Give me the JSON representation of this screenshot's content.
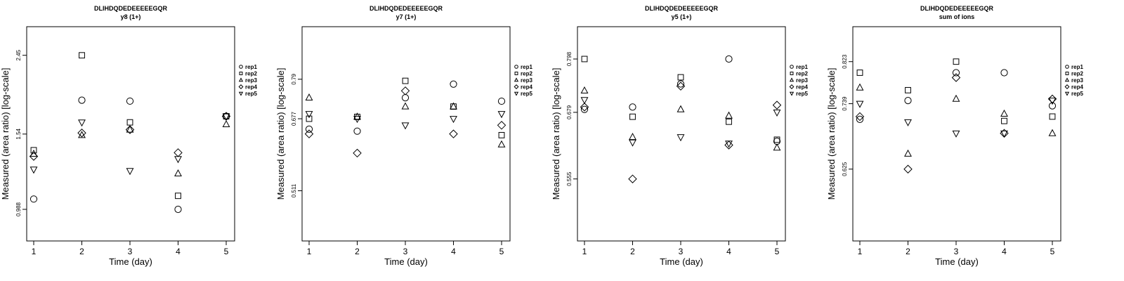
{
  "chart_data": [
    {
      "type": "scatter",
      "title": "DLIHDQDEDEEEEEGQR",
      "subtitle": "y8 (1+)",
      "xlabel": "Time (day)",
      "ylabel": "Measured (area ratio) [log-scale]",
      "x_ticks": [
        "1",
        "2",
        "3",
        "4",
        "5"
      ],
      "y_ticks": [
        {
          "label": "0.988",
          "value": 0.988
        },
        {
          "label": "1.54",
          "value": 1.54
        },
        {
          "label": "2.45",
          "value": 2.45
        }
      ],
      "ylim": [
        0.82,
        2.9
      ],
      "log_scale": true,
      "grid": false,
      "legend_position": "right",
      "series": [
        {
          "name": "rep1",
          "marker": "circle",
          "x": [
            1,
            2,
            3,
            4,
            5
          ],
          "y": [
            1.05,
            1.88,
            1.87,
            0.988,
            1.71
          ]
        },
        {
          "name": "rep2",
          "marker": "square",
          "x": [
            1,
            2,
            3,
            4,
            5
          ],
          "y": [
            1.4,
            2.45,
            1.65,
            1.07,
            1.71
          ]
        },
        {
          "name": "rep3",
          "marker": "triangle",
          "x": [
            1,
            2,
            3,
            4,
            5
          ],
          "y": [
            1.37,
            1.53,
            1.58,
            1.22,
            1.63
          ]
        },
        {
          "name": "rep4",
          "marker": "diamond",
          "x": [
            1,
            2,
            3,
            4,
            5
          ],
          "y": [
            1.35,
            1.55,
            1.58,
            1.38,
            1.71
          ]
        },
        {
          "name": "rep5",
          "marker": "nabla",
          "x": [
            1,
            2,
            3,
            4,
            5
          ],
          "y": [
            1.25,
            1.65,
            1.24,
            1.33,
            1.71
          ]
        }
      ]
    },
    {
      "type": "scatter",
      "title": "DLIHDQDEDEEEEEGQR",
      "subtitle": "y7 (1+)",
      "xlabel": "Time (day)",
      "ylabel": "Measured (area ratio) [log-scale]",
      "x_ticks": [
        "1",
        "2",
        "3",
        "4",
        "5"
      ],
      "y_ticks": [
        {
          "label": "0.511",
          "value": 0.511
        },
        {
          "label": "0.677",
          "value": 0.677
        },
        {
          "label": "0.79",
          "value": 0.79
        }
      ],
      "ylim": [
        0.42,
        0.97
      ],
      "log_scale": true,
      "grid": false,
      "legend_position": "right",
      "series": [
        {
          "name": "rep1",
          "marker": "circle",
          "x": [
            1,
            2,
            3,
            4,
            5
          ],
          "y": [
            0.65,
            0.645,
            0.735,
            0.775,
            0.725
          ]
        },
        {
          "name": "rep2",
          "marker": "square",
          "x": [
            1,
            2,
            3,
            4,
            5
          ],
          "y": [
            0.677,
            0.682,
            0.785,
            0.71,
            0.635
          ]
        },
        {
          "name": "rep3",
          "marker": "triangle",
          "x": [
            1,
            2,
            3,
            4,
            5
          ],
          "y": [
            0.735,
            0.682,
            0.71,
            0.71,
            0.612
          ]
        },
        {
          "name": "rep4",
          "marker": "diamond",
          "x": [
            1,
            2,
            3,
            4,
            5
          ],
          "y": [
            0.638,
            0.592,
            0.755,
            0.638,
            0.66
          ]
        },
        {
          "name": "rep5",
          "marker": "nabla",
          "x": [
            1,
            2,
            3,
            4,
            5
          ],
          "y": [
            0.69,
            0.677,
            0.66,
            0.677,
            0.69
          ]
        }
      ]
    },
    {
      "type": "scatter",
      "title": "DLIHDQDEDEEEEEGQR",
      "subtitle": "y5 (1+)",
      "xlabel": "Time (day)",
      "ylabel": "Measured (area ratio) [log-scale]",
      "x_ticks": [
        "1",
        "2",
        "3",
        "4",
        "5"
      ],
      "y_ticks": [
        {
          "label": "0.555",
          "value": 0.555
        },
        {
          "label": "0.679",
          "value": 0.679
        },
        {
          "label": "0.798",
          "value": 0.798
        }
      ],
      "ylim": [
        0.46,
        0.88
      ],
      "log_scale": true,
      "grid": false,
      "legend_position": "right",
      "series": [
        {
          "name": "rep1",
          "marker": "circle",
          "x": [
            1,
            2,
            3,
            4,
            5
          ],
          "y": [
            0.685,
            0.69,
            0.74,
            0.798,
            0.622
          ]
        },
        {
          "name": "rep2",
          "marker": "square",
          "x": [
            1,
            2,
            3,
            4,
            5
          ],
          "y": [
            0.798,
            0.67,
            0.755,
            0.66,
            0.625
          ]
        },
        {
          "name": "rep3",
          "marker": "triangle",
          "x": [
            1,
            2,
            3,
            4,
            5
          ],
          "y": [
            0.725,
            0.63,
            0.685,
            0.672,
            0.61
          ]
        },
        {
          "name": "rep4",
          "marker": "diamond",
          "x": [
            1,
            2,
            3,
            4,
            5
          ],
          "y": [
            0.69,
            0.555,
            0.735,
            0.615,
            0.694
          ]
        },
        {
          "name": "rep5",
          "marker": "nabla",
          "x": [
            1,
            2,
            3,
            4,
            5
          ],
          "y": [
            0.705,
            0.62,
            0.63,
            0.618,
            0.679
          ]
        }
      ]
    },
    {
      "type": "scatter",
      "title": "DLIHDQDEDEEEEEGQR",
      "subtitle": "sum of ions",
      "xlabel": "Time (day)",
      "ylabel": "Measured (area ratio) [log-scale]",
      "x_ticks": [
        "1",
        "2",
        "3",
        "4",
        "5"
      ],
      "y_ticks": [
        {
          "label": "0.625",
          "value": 0.625
        },
        {
          "label": "0.739",
          "value": 0.739
        },
        {
          "label": "0.823",
          "value": 0.823
        }
      ],
      "ylim": [
        0.52,
        0.9
      ],
      "log_scale": true,
      "grid": false,
      "legend_position": "right",
      "series": [
        {
          "name": "rep1",
          "marker": "circle",
          "x": [
            1,
            2,
            3,
            4,
            5
          ],
          "y": [
            0.71,
            0.745,
            0.8,
            0.8,
            0.735
          ]
        },
        {
          "name": "rep2",
          "marker": "square",
          "x": [
            1,
            2,
            3,
            4,
            5
          ],
          "y": [
            0.8,
            0.765,
            0.823,
            0.707,
            0.715
          ]
        },
        {
          "name": "rep3",
          "marker": "triangle",
          "x": [
            1,
            2,
            3,
            4,
            5
          ],
          "y": [
            0.77,
            0.65,
            0.748,
            0.72,
            0.685
          ]
        },
        {
          "name": "rep4",
          "marker": "diamond",
          "x": [
            1,
            2,
            3,
            4,
            5
          ],
          "y": [
            0.715,
            0.625,
            0.79,
            0.685,
            0.748
          ]
        },
        {
          "name": "rep5",
          "marker": "nabla",
          "x": [
            1,
            2,
            3,
            4,
            5
          ],
          "y": [
            0.739,
            0.705,
            0.685,
            0.685,
            0.745
          ]
        }
      ]
    }
  ]
}
